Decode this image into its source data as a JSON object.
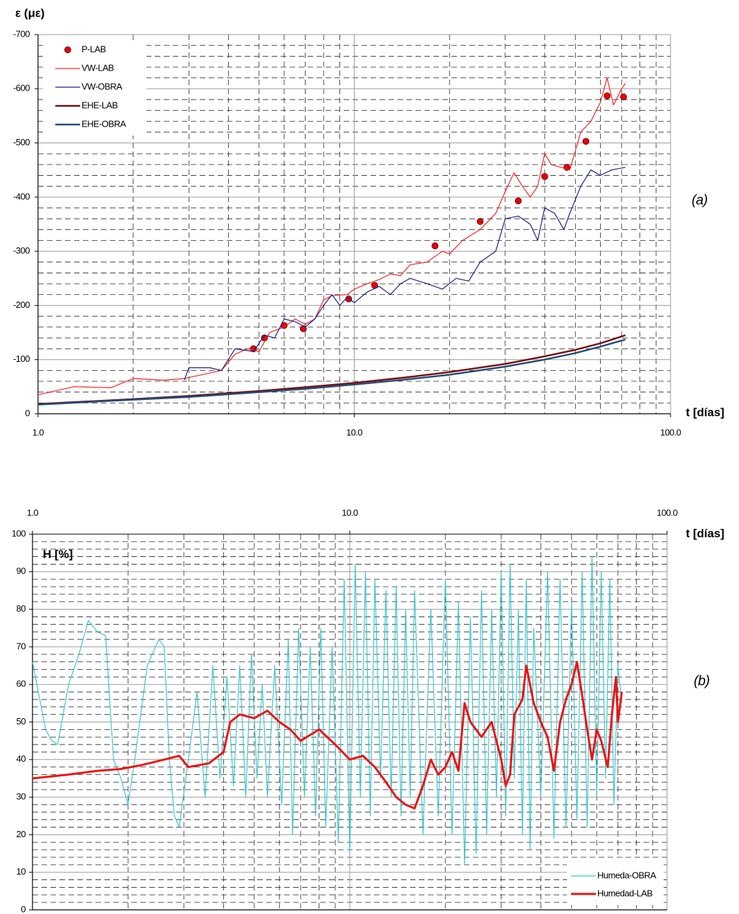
{
  "chart_data": [
    {
      "type": "line",
      "xscale": "log",
      "xaxis_position": "bottom",
      "legend": "upper left",
      "grid": true,
      "ylabel": "ε (με)",
      "xlabel": "t [días]",
      "annotation": "(a)",
      "xlim": [
        1,
        100
      ],
      "xticks": [
        {
          "value": 1,
          "label": "1.0"
        },
        {
          "value": 10,
          "label": "10.0"
        },
        {
          "value": 100,
          "label": "100.0"
        }
      ],
      "xminor": [
        2,
        3,
        4,
        5,
        6,
        7,
        8,
        9,
        20,
        30,
        40,
        50,
        60,
        70,
        80,
        90
      ],
      "ylim": [
        0,
        -700
      ],
      "yticks": [
        0,
        -100,
        -200,
        -300,
        -400,
        -500,
        -600,
        -700
      ],
      "yminor": [
        -20,
        -40,
        -60,
        -80,
        -120,
        -140,
        -160,
        -180,
        -220,
        -240,
        -260,
        -280,
        -320,
        -340,
        -360,
        -380,
        -420,
        -440,
        -460,
        -480,
        -520,
        -540,
        -560,
        -580,
        -620,
        -640,
        -660,
        -680
      ],
      "series": [
        {
          "name": "P-LAB",
          "color": "#e8000b",
          "marker": "circle",
          "x": [
            4.8,
            5.2,
            6.0,
            6.9,
            9.6,
            11.6,
            18,
            25,
            33,
            40,
            47,
            54,
            63,
            71
          ],
          "values": [
            -120,
            -140,
            -163,
            -157,
            -212,
            -237,
            -310,
            -355,
            -393,
            -438,
            -455,
            -503,
            -587,
            -585
          ]
        },
        {
          "name": "VW-LAB",
          "color": "#ff2020",
          "x": [
            1,
            1.3,
            1.7,
            2.0,
            2.5,
            2.9,
            3.3,
            3.8,
            4.2,
            4.6,
            5.0,
            5.4,
            6.0,
            6.5,
            7.0,
            7.5,
            8.0,
            8.5,
            9.5,
            10,
            11,
            12,
            13,
            14,
            15,
            17,
            19,
            20,
            22,
            25,
            28,
            30,
            32,
            34,
            36,
            38,
            40,
            42,
            45,
            48,
            52,
            56,
            60,
            63,
            66,
            70,
            72
          ],
          "values": [
            -35,
            -50,
            -48,
            -65,
            -62,
            -65,
            -72,
            -80,
            -110,
            -120,
            -115,
            -150,
            -160,
            -175,
            -165,
            -175,
            -210,
            -218,
            -220,
            -230,
            -240,
            -248,
            -258,
            -255,
            -275,
            -280,
            -300,
            -295,
            -320,
            -340,
            -370,
            -410,
            -445,
            -420,
            -400,
            -420,
            -480,
            -460,
            -455,
            -450,
            -520,
            -540,
            -575,
            -620,
            -570,
            -600,
            -610
          ]
        },
        {
          "name": "VW-OBRA",
          "color": "#1a1a8c",
          "x": [
            2.9,
            3.0,
            3.5,
            3.8,
            4.2,
            4.8,
            5.2,
            5.6,
            6.0,
            6.5,
            7.0,
            7.5,
            8.0,
            8.5,
            9,
            9.5,
            10,
            11,
            12,
            13,
            14,
            15,
            17,
            19,
            21,
            23,
            25,
            28,
            30,
            33,
            36,
            38,
            40,
            43,
            46,
            48,
            52,
            56,
            60,
            65,
            72
          ],
          "values": [
            -62,
            -85,
            -85,
            -80,
            -120,
            -115,
            -145,
            -140,
            -175,
            -170,
            -160,
            -175,
            -200,
            -220,
            -200,
            -215,
            -205,
            -225,
            -235,
            -220,
            -240,
            -250,
            -240,
            -230,
            -250,
            -245,
            -280,
            -300,
            -360,
            -365,
            -350,
            -320,
            -380,
            -370,
            -340,
            -370,
            -420,
            -450,
            -440,
            -450,
            -455
          ]
        },
        {
          "name": "EHE-LAB",
          "color": "#7a0f0f",
          "x": [
            1,
            2,
            3,
            5,
            7,
            10,
            15,
            20,
            30,
            40,
            50,
            60,
            72
          ],
          "values": [
            -18,
            -27,
            -33,
            -42,
            -49,
            -57,
            -68,
            -77,
            -92,
            -106,
            -118,
            -130,
            -145
          ]
        },
        {
          "name": "EHE-OBRA",
          "color": "#1f4e79",
          "x": [
            1,
            2,
            3,
            5,
            7,
            10,
            15,
            20,
            30,
            40,
            50,
            60,
            72
          ],
          "values": [
            -17,
            -26,
            -31,
            -40,
            -46,
            -54,
            -64,
            -72,
            -87,
            -100,
            -112,
            -124,
            -137
          ]
        }
      ]
    },
    {
      "type": "line",
      "xscale": "log",
      "xaxis_position": "top",
      "legend": "lower right",
      "grid": true,
      "ylabel": "H [%]",
      "xlabel": "t [días]",
      "annotation": "(b)",
      "xlim": [
        1,
        100
      ],
      "xticks": [
        {
          "value": 1,
          "label": "1.0"
        },
        {
          "value": 10,
          "label": "10.0"
        },
        {
          "value": 100,
          "label": "100.0"
        }
      ],
      "xminor": [
        2,
        3,
        4,
        5,
        6,
        7,
        8,
        9,
        20,
        30,
        40,
        50,
        60,
        70,
        80,
        90
      ],
      "ylim": [
        0,
        100
      ],
      "yticks": [
        0,
        10,
        20,
        30,
        40,
        50,
        60,
        70,
        80,
        90,
        100
      ],
      "yminor": [
        2,
        4,
        6,
        8,
        12,
        14,
        16,
        18,
        22,
        24,
        26,
        28,
        32,
        34,
        36,
        38,
        42,
        44,
        46,
        48,
        52,
        54,
        56,
        58,
        62,
        64,
        66,
        68,
        72,
        74,
        76,
        78,
        82,
        84,
        86,
        88,
        92,
        94,
        96,
        98
      ],
      "series": [
        {
          "name": "Humeda-OBRA",
          "color": "#3cc6d0",
          "x": [
            1,
            1.1,
            1.15,
            1.2,
            1.3,
            1.4,
            1.5,
            1.6,
            1.7,
            1.8,
            1.9,
            2.0,
            2.1,
            2.3,
            2.5,
            2.6,
            2.7,
            2.8,
            2.9,
            3.1,
            3.3,
            3.5,
            3.7,
            3.9,
            4.1,
            4.3,
            4.5,
            4.7,
            4.9,
            5.1,
            5.3,
            5.5,
            5.8,
            6.1,
            6.4,
            6.6,
            6.9,
            7.2,
            7.5,
            7.8,
            8.1,
            8.4,
            8.8,
            9.2,
            9.6,
            10.0,
            10.4,
            10.8,
            11.2,
            11.6,
            12,
            12.5,
            13,
            13.5,
            14,
            14.5,
            15,
            15.5,
            16,
            17,
            18,
            19,
            20,
            21,
            22,
            23,
            24,
            25,
            26,
            27,
            28,
            29,
            30,
            31,
            32,
            33,
            34,
            35,
            36,
            37,
            38,
            40,
            42,
            44,
            46,
            48,
            50,
            52,
            54,
            56,
            58,
            60,
            62,
            64,
            66,
            68,
            70,
            72
          ],
          "values": [
            66,
            48,
            45,
            44,
            60,
            68,
            77,
            74,
            73,
            40,
            35,
            28,
            40,
            65,
            72,
            70,
            40,
            25,
            22,
            40,
            58,
            30,
            65,
            35,
            62,
            33,
            65,
            30,
            68,
            35,
            60,
            30,
            65,
            28,
            72,
            20,
            75,
            30,
            70,
            25,
            75,
            22,
            70,
            18,
            88,
            15,
            92,
            30,
            90,
            25,
            88,
            35,
            85,
            30,
            86,
            25,
            80,
            30,
            85,
            20,
            80,
            25,
            88,
            20,
            82,
            12,
            78,
            15,
            85,
            20,
            80,
            30,
            90,
            25,
            92,
            35,
            80,
            20,
            88,
            16,
            75,
            30,
            90,
            19,
            88,
            22,
            82,
            24,
            90,
            22,
            94,
            30,
            90,
            35,
            88,
            28,
            65,
            55
          ]
        },
        {
          "name": "Humedad-LAB",
          "color": "#ee1111",
          "x": [
            1,
            1.3,
            1.6,
            1.9,
            2.2,
            2.6,
            2.9,
            3.1,
            3.6,
            4.0,
            4.2,
            4.5,
            5,
            5.5,
            6,
            6.5,
            7,
            8,
            9,
            10,
            11,
            12,
            13,
            14,
            15,
            16,
            17,
            18,
            19,
            20,
            21,
            22,
            23,
            24,
            26,
            28,
            30,
            31,
            32,
            33,
            35,
            36,
            38,
            40,
            42,
            44,
            46,
            48,
            50,
            52,
            54,
            56,
            58,
            60,
            62,
            65,
            67,
            69,
            70,
            72
          ],
          "values": [
            35,
            36,
            37,
            37.5,
            38.5,
            40,
            41,
            38,
            39,
            42,
            50,
            52,
            51,
            53,
            50,
            48,
            45,
            48,
            44,
            40,
            41,
            38,
            34,
            30,
            28,
            27,
            33,
            40,
            36,
            38,
            42,
            37,
            55,
            50,
            46,
            50,
            40,
            33,
            36,
            52,
            56,
            65,
            55,
            50,
            46,
            37,
            50,
            56,
            60,
            66,
            57,
            48,
            40,
            48,
            45,
            38,
            52,
            62,
            50,
            58
          ]
        }
      ]
    }
  ]
}
